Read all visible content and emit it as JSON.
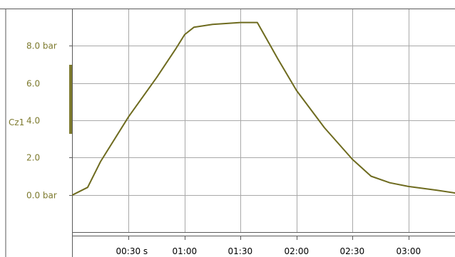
{
  "colors": {
    "series": "#6e6b1f",
    "axis_text": "#7d7a2e",
    "grid": "#a9a9a9",
    "frame": "#5a5a5a",
    "background": "#ffffff"
  },
  "chart_data": {
    "type": "line",
    "ylabel": "Cz1",
    "y_unit": "bar",
    "ylim": [
      -2.0,
      10.0
    ],
    "y_ticks": [
      {
        "value": 8.0,
        "label": "8.0  bar"
      },
      {
        "value": 6.0,
        "label": "6.0"
      },
      {
        "value": 4.0,
        "label": "4.0"
      },
      {
        "value": 2.0,
        "label": "2.0"
      },
      {
        "value": 0.0,
        "label": "0.0  bar"
      }
    ],
    "xlim": [
      "00:00",
      "03:25"
    ],
    "x_ticks": [
      {
        "value": "00:30",
        "label": "00:30 s"
      },
      {
        "value": "01:00",
        "label": "01:00"
      },
      {
        "value": "01:30",
        "label": "01:30"
      },
      {
        "value": "02:00",
        "label": "02:00"
      },
      {
        "value": "02:30",
        "label": "02:30"
      },
      {
        "value": "03:00",
        "label": "03:00"
      }
    ],
    "grid": true,
    "series": [
      {
        "points": [
          {
            "x": "00:00",
            "y": 0.0
          },
          {
            "x": "00:08",
            "y": 0.4
          },
          {
            "x": "00:15",
            "y": 1.8
          },
          {
            "x": "00:30",
            "y": 4.2
          },
          {
            "x": "00:45",
            "y": 6.3
          },
          {
            "x": "00:55",
            "y": 7.8
          },
          {
            "x": "01:00",
            "y": 8.6
          },
          {
            "x": "01:05",
            "y": 9.0
          },
          {
            "x": "01:15",
            "y": 9.15
          },
          {
            "x": "01:30",
            "y": 9.25
          },
          {
            "x": "01:39",
            "y": 9.25
          },
          {
            "x": "01:50",
            "y": 7.3
          },
          {
            "x": "02:00",
            "y": 5.6
          },
          {
            "x": "02:15",
            "y": 3.6
          },
          {
            "x": "02:30",
            "y": 1.9
          },
          {
            "x": "02:40",
            "y": 1.0
          },
          {
            "x": "02:50",
            "y": 0.65
          },
          {
            "x": "03:00",
            "y": 0.45
          },
          {
            "x": "03:15",
            "y": 0.25
          },
          {
            "x": "03:25",
            "y": 0.1
          }
        ]
      }
    ]
  }
}
